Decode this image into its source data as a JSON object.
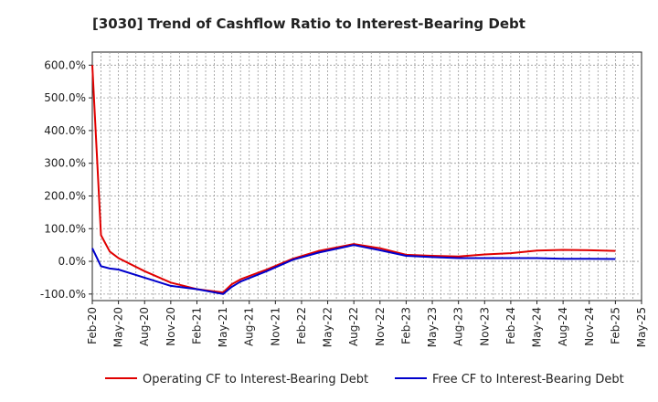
{
  "chart_data": {
    "type": "line",
    "title": "[3030]  Trend of Cashflow Ratio to Interest-Bearing Debt",
    "xlabel": "",
    "ylabel": "",
    "ylim": [
      -120,
      640
    ],
    "y_ticks": [
      {
        "value": 600,
        "label": "600.0%"
      },
      {
        "value": 500,
        "label": "500.0%"
      },
      {
        "value": 400,
        "label": "400.0%"
      },
      {
        "value": 300,
        "label": "300.0%"
      },
      {
        "value": 200,
        "label": "200.0%"
      },
      {
        "value": 100,
        "label": "100.0%"
      },
      {
        "value": 0,
        "label": "0.0%"
      },
      {
        "value": -100,
        "label": "-100.0%"
      }
    ],
    "x_ticks": [
      "Feb-20",
      "May-20",
      "Aug-20",
      "Nov-20",
      "Feb-21",
      "May-21",
      "Aug-21",
      "Nov-21",
      "Feb-22",
      "May-22",
      "Aug-22",
      "Nov-22",
      "Feb-23",
      "May-23",
      "Aug-23",
      "Nov-23",
      "Feb-24",
      "May-24",
      "Aug-24",
      "Nov-24",
      "Feb-25",
      "May-25"
    ],
    "x_range": [
      0,
      63
    ],
    "grid": true,
    "legend_position": "bottom",
    "series": [
      {
        "name": "Operating CF to Interest-Bearing Debt",
        "color": "#e00000",
        "points": [
          [
            0,
            600
          ],
          [
            1,
            80
          ],
          [
            2,
            30
          ],
          [
            3,
            10
          ],
          [
            6,
            -30
          ],
          [
            9,
            -65
          ],
          [
            12,
            -85
          ],
          [
            15,
            -95
          ],
          [
            16,
            -70
          ],
          [
            17,
            -55
          ],
          [
            20,
            -25
          ],
          [
            23,
            8
          ],
          [
            26,
            32
          ],
          [
            30,
            53
          ],
          [
            33,
            40
          ],
          [
            36,
            20
          ],
          [
            39,
            17
          ],
          [
            42,
            15
          ],
          [
            45,
            21
          ],
          [
            48,
            25
          ],
          [
            51,
            33
          ],
          [
            54,
            35
          ],
          [
            57,
            34
          ],
          [
            60,
            32
          ]
        ]
      },
      {
        "name": "Free CF to Interest-Bearing Debt",
        "color": "#0000cc",
        "points": [
          [
            0,
            40
          ],
          [
            1,
            -15
          ],
          [
            2,
            -22
          ],
          [
            3,
            -25
          ],
          [
            6,
            -50
          ],
          [
            9,
            -75
          ],
          [
            12,
            -85
          ],
          [
            15,
            -100
          ],
          [
            16,
            -78
          ],
          [
            17,
            -62
          ],
          [
            20,
            -30
          ],
          [
            23,
            5
          ],
          [
            26,
            27
          ],
          [
            30,
            50
          ],
          [
            33,
            34
          ],
          [
            36,
            17
          ],
          [
            39,
            13
          ],
          [
            42,
            10
          ],
          [
            45,
            10
          ],
          [
            48,
            10
          ],
          [
            51,
            10
          ],
          [
            54,
            8
          ],
          [
            57,
            8
          ],
          [
            60,
            7
          ]
        ]
      }
    ]
  }
}
